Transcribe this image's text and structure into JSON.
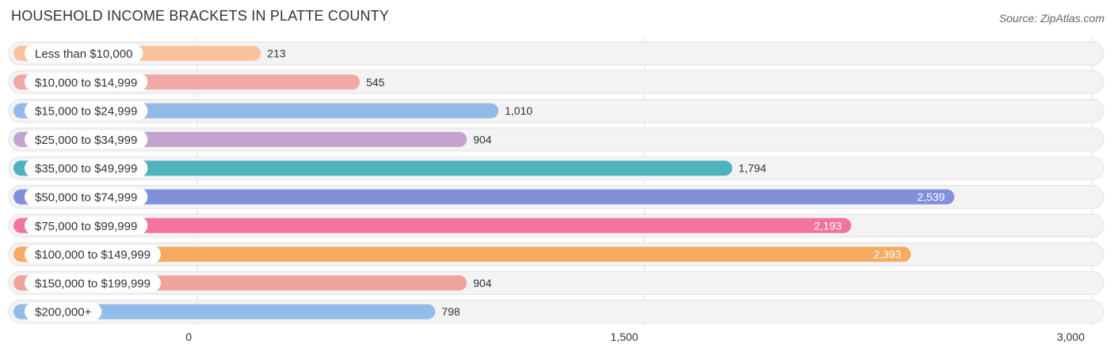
{
  "header": {
    "title": "HOUSEHOLD INCOME BRACKETS IN PLATTE COUNTY",
    "source": "Source: ZipAtlas.com"
  },
  "chart_data": {
    "type": "bar",
    "orientation": "horizontal",
    "categories": [
      "Less than $10,000",
      "$10,000 to $14,999",
      "$15,000 to $24,999",
      "$25,000 to $34,999",
      "$35,000 to $49,999",
      "$50,000 to $74,999",
      "$75,000 to $99,999",
      "$100,000 to $149,999",
      "$150,000 to $199,999",
      "$200,000+"
    ],
    "values": [
      213,
      545,
      1010,
      904,
      1794,
      2539,
      2193,
      2393,
      904,
      798
    ],
    "value_labels": [
      "213",
      "545",
      "1,010",
      "904",
      "1,794",
      "2,539",
      "2,193",
      "2,393",
      "904",
      "798"
    ],
    "colors": [
      "#f9c49c",
      "#f0a9a8",
      "#93b9e6",
      "#c4a4cc",
      "#4db3bd",
      "#8090db",
      "#f2739c",
      "#f5aa60",
      "#f0a29e",
      "#94bce9"
    ],
    "xlim": [
      0,
      3000
    ],
    "x_ticks": [
      0,
      1500,
      3000
    ],
    "x_tick_labels": [
      "0",
      "1,500",
      "3,000"
    ],
    "grid": true
  }
}
